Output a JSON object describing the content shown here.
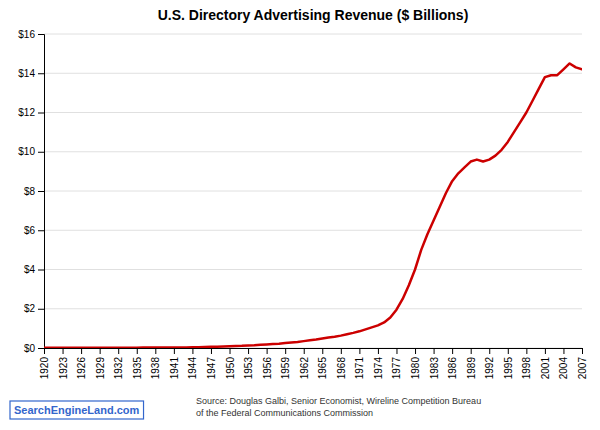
{
  "chart_data": {
    "type": "line",
    "title": "U.S. Directory Advertising Revenue ($ Billions)",
    "color": "#CC0000",
    "x": [
      1920,
      1921,
      1922,
      1923,
      1924,
      1925,
      1926,
      1927,
      1928,
      1929,
      1930,
      1931,
      1932,
      1933,
      1934,
      1935,
      1936,
      1937,
      1938,
      1939,
      1940,
      1941,
      1942,
      1943,
      1944,
      1945,
      1946,
      1947,
      1948,
      1949,
      1950,
      1951,
      1952,
      1953,
      1954,
      1955,
      1956,
      1957,
      1958,
      1959,
      1960,
      1961,
      1962,
      1963,
      1964,
      1965,
      1966,
      1967,
      1968,
      1969,
      1970,
      1971,
      1972,
      1973,
      1974,
      1975,
      1976,
      1977,
      1978,
      1979,
      1980,
      1981,
      1982,
      1983,
      1984,
      1985,
      1986,
      1987,
      1988,
      1989,
      1990,
      1991,
      1992,
      1993,
      1994,
      1995,
      1996,
      1997,
      1998,
      1999,
      2000,
      2001,
      2002,
      2003,
      2004,
      2005,
      2006,
      2007
    ],
    "values": [
      0.01,
      0.01,
      0.01,
      0.01,
      0.01,
      0.01,
      0.01,
      0.01,
      0.01,
      0.01,
      0.01,
      0.01,
      0.01,
      0.01,
      0.01,
      0.01,
      0.02,
      0.02,
      0.02,
      0.02,
      0.02,
      0.03,
      0.03,
      0.03,
      0.04,
      0.04,
      0.05,
      0.06,
      0.07,
      0.08,
      0.09,
      0.1,
      0.11,
      0.13,
      0.14,
      0.16,
      0.18,
      0.2,
      0.22,
      0.25,
      0.28,
      0.31,
      0.35,
      0.39,
      0.43,
      0.48,
      0.53,
      0.57,
      0.63,
      0.7,
      0.77,
      0.85,
      0.95,
      1.05,
      1.15,
      1.3,
      1.55,
      1.95,
      2.5,
      3.2,
      4.0,
      5.0,
      5.8,
      6.5,
      7.2,
      7.9,
      8.5,
      8.9,
      9.2,
      9.5,
      9.6,
      9.5,
      9.6,
      9.8,
      10.1,
      10.5,
      11.0,
      11.5,
      12.0,
      12.6,
      13.2,
      13.8,
      13.9,
      13.9,
      14.2,
      14.5,
      14.3,
      14.2
    ],
    "xlim": [
      1920,
      2007
    ],
    "xticks": [
      1920,
      1923,
      1926,
      1929,
      1932,
      1935,
      1938,
      1941,
      1944,
      1947,
      1950,
      1953,
      1956,
      1959,
      1962,
      1965,
      1968,
      1971,
      1974,
      1977,
      1980,
      1983,
      1986,
      1989,
      1992,
      1995,
      1998,
      2001,
      2004,
      2007
    ],
    "ylim": [
      0,
      16
    ],
    "yticks": [
      {
        "value": 0,
        "label": "$0"
      },
      {
        "value": 2,
        "label": "$2"
      },
      {
        "value": 4,
        "label": "$4"
      },
      {
        "value": 6,
        "label": "$6"
      },
      {
        "value": 8,
        "label": "$8"
      },
      {
        "value": 10,
        "label": "$10"
      },
      {
        "value": 12,
        "label": "$12"
      },
      {
        "value": 14,
        "label": "$14"
      },
      {
        "value": 16,
        "label": "$16"
      }
    ],
    "grid": true,
    "annotations": [
      "SearchEngineLand.com",
      "Source: Douglas Galbi, Senior Economist, Wireline Competition Bureau\nof the Federal Communications Commission"
    ]
  }
}
